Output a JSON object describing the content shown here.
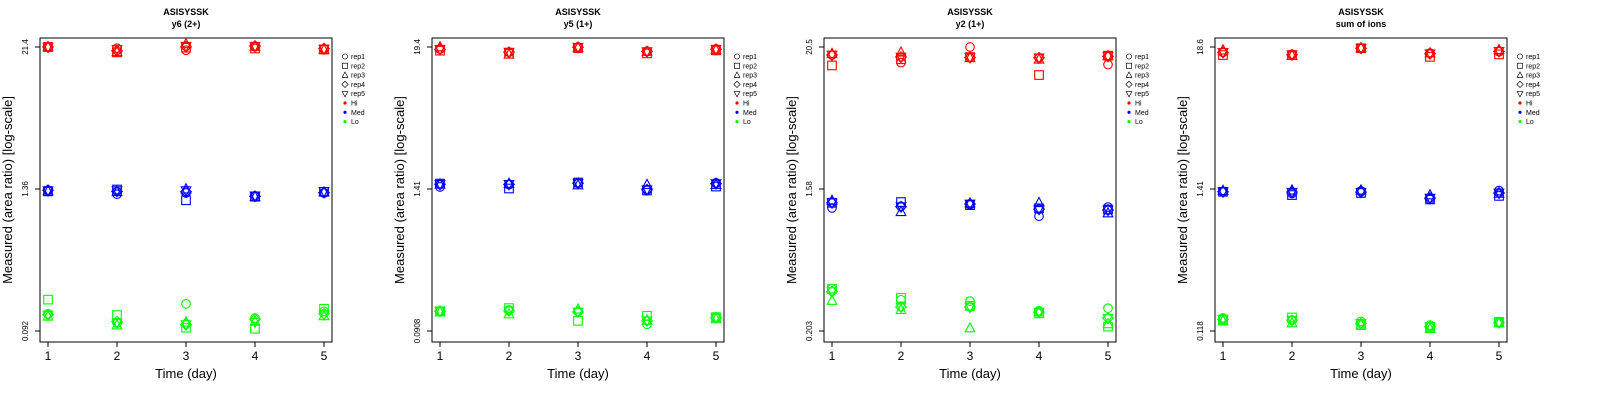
{
  "chart_data": [
    {
      "type": "scatter",
      "title": "ASISYSSK",
      "subtitle": "y6 (2+)",
      "xlabel": "Time (day)",
      "ylabel": "Measured (area ratio) [log-scale]",
      "x": [
        1,
        2,
        3,
        4,
        5
      ],
      "ytick_labels": [
        "0.092",
        "1.36",
        "21.4"
      ],
      "ylim": [
        0.092,
        21.4
      ],
      "yscale": "log",
      "series": [
        {
          "name": "Hi",
          "color": "#ff0000",
          "points": [
            [
              21.4,
              20.9,
              20.1,
              21.5,
              20.6
            ],
            [
              21.4,
              19.3,
              21.1,
              20.8,
              20.4
            ],
            [
              21.4,
              19.5,
              22.7,
              21.6,
              20.3
            ],
            [
              21.4,
              19.9,
              21.5,
              21.8,
              20.8
            ],
            [
              21.4,
              20.4,
              21.7,
              21.7,
              20.6
            ]
          ]
        },
        {
          "name": "Med",
          "color": "#0000ff",
          "points": [
            [
              1.37,
              1.27,
              1.3,
              1.23,
              1.3
            ],
            [
              1.34,
              1.39,
              1.13,
              1.21,
              1.33
            ],
            [
              1.35,
              1.33,
              1.4,
              1.21,
              1.32
            ],
            [
              1.37,
              1.34,
              1.33,
              1.22,
              1.31
            ],
            [
              1.36,
              1.36,
              1.36,
              1.23,
              1.34
            ]
          ]
        },
        {
          "name": "Lo",
          "color": "#00ff00",
          "points": [
            [
              0.128,
              0.107,
              0.155,
              0.118,
              0.134
            ],
            [
              0.168,
              0.125,
              0.098,
              0.096,
              0.141
            ],
            [
              0.122,
              0.103,
              0.109,
              0.111,
              0.123
            ],
            [
              0.126,
              0.11,
              0.104,
              0.115,
              0.128
            ],
            [
              0.125,
              0.108,
              0.104,
              0.109,
              0.126
            ]
          ]
        }
      ]
    },
    {
      "type": "scatter",
      "title": "ASISYSSK",
      "subtitle": "y5 (1+)",
      "xlabel": "Time (day)",
      "ylabel": "Measured (area ratio) [log-scale]",
      "x": [
        1,
        2,
        3,
        4,
        5
      ],
      "ytick_labels": [
        "0.0908",
        "1.41",
        "19.4"
      ],
      "ylim": [
        0.0908,
        19.4
      ],
      "yscale": "log",
      "series": [
        {
          "name": "Hi",
          "color": "#ff0000",
          "points": [
            [
              18.6,
              17.6,
              19.4,
              17.9,
              18.7
            ],
            [
              18.1,
              17.1,
              19.0,
              17.2,
              18.2
            ],
            [
              19.4,
              16.9,
              19.2,
              17.8,
              18.4
            ],
            [
              18.6,
              17.6,
              19.3,
              17.8,
              18.6
            ],
            [
              18.6,
              17.6,
              19.3,
              17.8,
              18.6
            ]
          ]
        },
        {
          "name": "Med",
          "color": "#0000ff",
          "points": [
            [
              1.38,
              1.44,
              1.48,
              1.3,
              1.49
            ],
            [
              1.47,
              1.34,
              1.5,
              1.29,
              1.39
            ],
            [
              1.45,
              1.47,
              1.43,
              1.44,
              1.44
            ],
            [
              1.45,
              1.45,
              1.48,
              1.31,
              1.47
            ],
            [
              1.45,
              1.45,
              1.48,
              1.31,
              1.47
            ]
          ]
        },
        {
          "name": "Lo",
          "color": "#00ff00",
          "points": [
            [
              0.132,
              0.135,
              0.131,
              0.103,
              0.116
            ],
            [
              0.132,
              0.14,
              0.11,
              0.121,
              0.118
            ],
            [
              0.13,
              0.125,
              0.137,
              0.111,
              0.114
            ],
            [
              0.132,
              0.133,
              0.13,
              0.11,
              0.117
            ],
            [
              0.132,
              0.133,
              0.13,
              0.11,
              0.117
            ]
          ]
        }
      ]
    },
    {
      "type": "scatter",
      "title": "ASISYSSK",
      "subtitle": "y2 (1+)",
      "xlabel": "Time (day)",
      "ylabel": "Measured (area ratio) [log-scale]",
      "x": [
        1,
        2,
        3,
        4,
        5
      ],
      "ytick_labels": [
        "0.203",
        "1.58",
        "20.5"
      ],
      "ylim": [
        0.203,
        20.5
      ],
      "yscale": "log",
      "series": [
        {
          "name": "Hi",
          "color": "#ff0000",
          "points": [
            [
              18.0,
              15.9,
              20.5,
              17.2,
              15.4
            ],
            [
              15.2,
              16.8,
              17.4,
              13.0,
              17.8
            ],
            [
              18.4,
              18.8,
              17.2,
              16.8,
              17.8
            ],
            [
              18.0,
              17.4,
              17.3,
              17.2,
              17.6
            ],
            [
              18.0,
              17.4,
              17.3,
              17.2,
              17.6
            ]
          ]
        },
        {
          "name": "Med",
          "color": "#0000ff",
          "points": [
            [
              1.5,
              1.54,
              1.58,
              1.31,
              1.52
            ],
            [
              1.63,
              1.65,
              1.57,
              1.49,
              1.46
            ],
            [
              1.69,
              1.41,
              1.62,
              1.63,
              1.38
            ],
            [
              1.63,
              1.53,
              1.6,
              1.47,
              1.45
            ],
            [
              1.63,
              1.53,
              1.6,
              1.47,
              1.45
            ]
          ]
        },
        {
          "name": "Lo",
          "color": "#00ff00",
          "points": [
            [
              0.403,
              0.337,
              0.33,
              0.282,
              0.294
            ],
            [
              0.403,
              0.348,
              0.305,
              0.27,
              0.218
            ],
            [
              0.333,
              0.287,
              0.213,
              0.276,
              0.228
            ],
            [
              0.385,
              0.3,
              0.3,
              0.276,
              0.25
            ],
            [
              0.385,
              0.3,
              0.3,
              0.276,
              0.25
            ]
          ]
        }
      ]
    },
    {
      "type": "scatter",
      "title": "ASISYSSK",
      "subtitle": "sum of ions",
      "xlabel": "Time (day)",
      "ylabel": "Measured (area ratio) [log-scale]",
      "x": [
        1,
        2,
        3,
        4,
        5
      ],
      "ytick_labels": [
        "0.118",
        "1.41",
        "18.6"
      ],
      "ylim": [
        0.118,
        18.6
      ],
      "yscale": "log",
      "series": [
        {
          "name": "Hi",
          "color": "#ff0000",
          "points": [
            [
              16.9,
              16.3,
              18.2,
              16.7,
              17.1
            ],
            [
              16.1,
              16.1,
              18.2,
              15.6,
              16.3
            ],
            [
              17.6,
              16.0,
              18.3,
              16.7,
              17.7
            ],
            [
              16.9,
              16.2,
              18.2,
              16.5,
              17.2
            ],
            [
              16.9,
              16.2,
              18.2,
              16.5,
              17.2
            ]
          ]
        },
        {
          "name": "Med",
          "color": "#0000ff",
          "points": [
            [
              1.41,
              1.37,
              1.43,
              1.23,
              1.44
            ],
            [
              1.41,
              1.33,
              1.38,
              1.23,
              1.31
            ],
            [
              1.44,
              1.45,
              1.45,
              1.33,
              1.37
            ],
            [
              1.41,
              1.4,
              1.4,
              1.26,
              1.38
            ],
            [
              1.41,
              1.4,
              1.4,
              1.26,
              1.38
            ]
          ]
        },
        {
          "name": "Lo",
          "color": "#00ff00",
          "points": [
            [
              0.149,
              0.143,
              0.14,
              0.131,
              0.138
            ],
            [
              0.145,
              0.15,
              0.131,
              0.127,
              0.139
            ],
            [
              0.141,
              0.136,
              0.133,
              0.123,
              0.136
            ],
            [
              0.145,
              0.143,
              0.135,
              0.127,
              0.137
            ],
            [
              0.145,
              0.143,
              0.135,
              0.127,
              0.137
            ]
          ]
        }
      ]
    }
  ],
  "legend": {
    "shape_entries": [
      {
        "label": "rep1",
        "marker": "circle"
      },
      {
        "label": "rep2",
        "marker": "square"
      },
      {
        "label": "rep3",
        "marker": "triangle-up"
      },
      {
        "label": "rep4",
        "marker": "diamond"
      },
      {
        "label": "rep5",
        "marker": "triangle-down"
      }
    ],
    "color_entries": [
      {
        "label": "Hi",
        "color": "#ff0000"
      },
      {
        "label": "Med",
        "color": "#0000ff"
      },
      {
        "label": "Lo",
        "color": "#00ff00"
      }
    ]
  }
}
